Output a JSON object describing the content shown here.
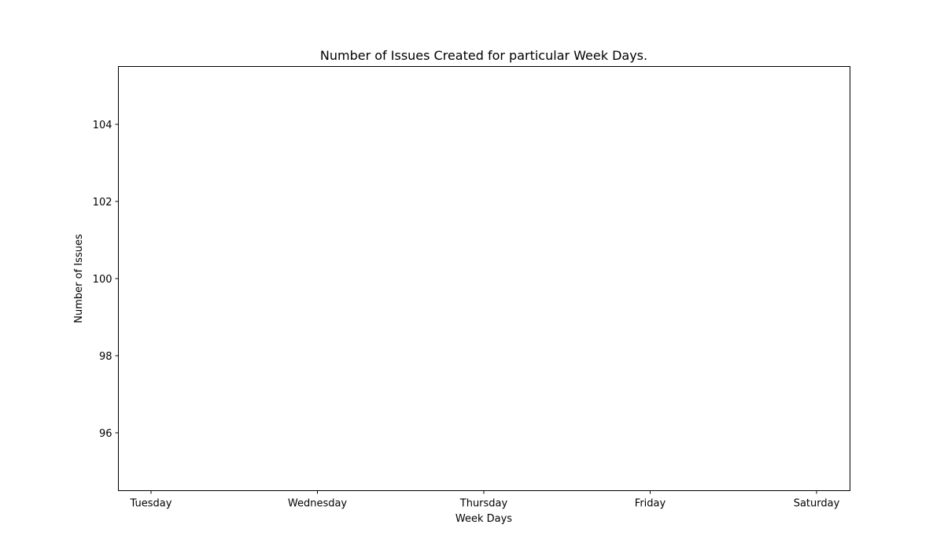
{
  "chart_data": {
    "type": "bar",
    "title": "Number of Issues Created for particular Week Days.",
    "xlabel": "Week Days",
    "ylabel": "Number of Issues",
    "categories": [
      "Tuesday",
      "Wednesday",
      "Thursday",
      "Friday",
      "Saturday"
    ],
    "values": [
      null,
      null,
      null,
      null,
      null
    ],
    "yticks": [
      96,
      98,
      100,
      102,
      104
    ],
    "ylim": [
      94.5,
      105.5
    ],
    "grid": false,
    "legend": "none"
  }
}
